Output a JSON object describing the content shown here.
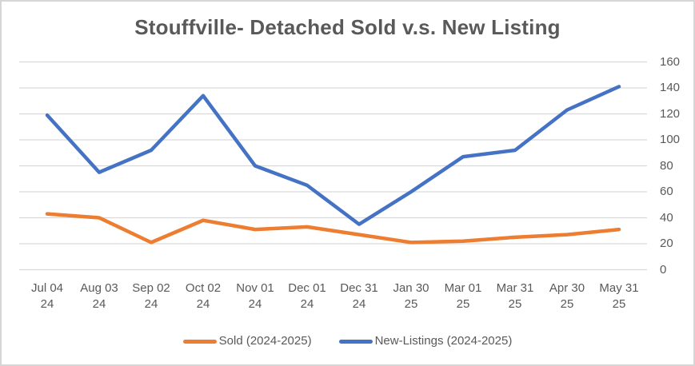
{
  "chart_data": {
    "type": "line",
    "title": "Stouffville- Detached Sold v.s. New Listing",
    "categories": [
      [
        "Jul 04",
        "24"
      ],
      [
        "Aug 03",
        "24"
      ],
      [
        "Sep 02",
        "24"
      ],
      [
        "Oct 02",
        "24"
      ],
      [
        "Nov 01",
        "24"
      ],
      [
        "Dec 01",
        "24"
      ],
      [
        "Dec 31",
        "24"
      ],
      [
        "Jan 30",
        "25"
      ],
      [
        "Mar 01",
        "25"
      ],
      [
        "Mar 31",
        "25"
      ],
      [
        "Apr 30",
        "25"
      ],
      [
        "May 31",
        "25"
      ]
    ],
    "series": [
      {
        "name": "Sold (2024-2025)",
        "color": "#ED7D31",
        "values": [
          43,
          40,
          21,
          38,
          31,
          33,
          27,
          21,
          22,
          25,
          27,
          31
        ]
      },
      {
        "name": "New-Listings (2024-2025)",
        "color": "#4472C4",
        "values": [
          119,
          75,
          92,
          134,
          80,
          65,
          35,
          60,
          87,
          92,
          123,
          141
        ]
      }
    ],
    "ylim": [
      0,
      160
    ],
    "yticks": [
      0,
      20,
      40,
      60,
      80,
      100,
      120,
      140,
      160
    ],
    "y_axis_side": "right",
    "grid": true,
    "grid_color": "#D9D9D9",
    "legend_position": "bottom",
    "text_color": "#595959"
  }
}
